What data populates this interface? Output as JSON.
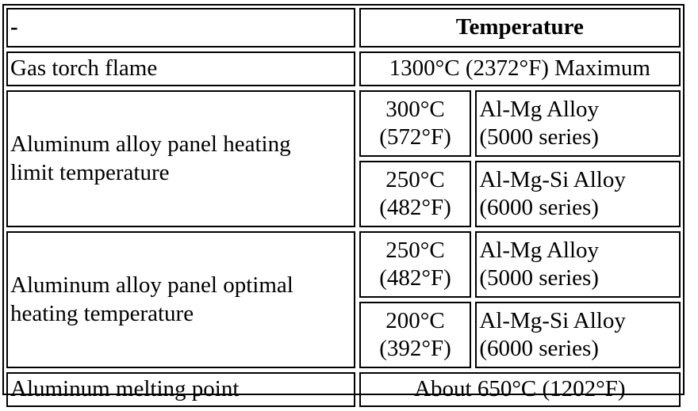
{
  "table": {
    "header": {
      "corner": "-",
      "temperature": "Temperature"
    },
    "gas_torch": {
      "label": "Gas torch flame",
      "value": "1300°C (2372°F) Maximum"
    },
    "heating_limit": {
      "label_line1": "Aluminum alloy panel heating",
      "label_line2": "limit temperature",
      "rows": [
        {
          "celsius": "300°C",
          "fahrenheit": "(572°F)",
          "alloy": "Al-Mg Alloy",
          "series": "(5000 series)"
        },
        {
          "celsius": "250°C",
          "fahrenheit": "(482°F)",
          "alloy": "Al-Mg-Si Alloy",
          "series": "(6000 series)"
        }
      ]
    },
    "optimal_heating": {
      "label_line1": "Aluminum alloy panel optimal",
      "label_line2": "heating temperature",
      "rows": [
        {
          "celsius": "250°C",
          "fahrenheit": "(482°F)",
          "alloy": "Al-Mg Alloy",
          "series": "(5000 series)"
        },
        {
          "celsius": "200°C",
          "fahrenheit": "(392°F)",
          "alloy": "Al-Mg-Si Alloy",
          "series": "(6000 series)"
        }
      ]
    },
    "melting_point": {
      "label": "Aluminum melting point",
      "value": "About 650°C (1202°F)"
    }
  }
}
